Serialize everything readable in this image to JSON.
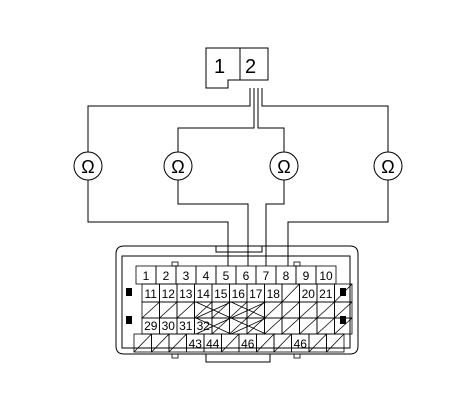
{
  "small_connector": {
    "pins": [
      "1",
      "2"
    ]
  },
  "ohmmeters": [
    {
      "symbol": "Ω"
    },
    {
      "symbol": "Ω"
    },
    {
      "symbol": "Ω"
    },
    {
      "symbol": "Ω"
    }
  ],
  "ecm_connector": {
    "row1": [
      "1",
      "2",
      "3",
      "4",
      "5",
      "6",
      "7",
      "8",
      "9",
      "10"
    ],
    "row2": [
      "11",
      "12",
      "13",
      "14",
      "15",
      "16",
      "17",
      "18",
      "",
      "20",
      "21",
      ""
    ],
    "row3": [
      "",
      "",
      "",
      "",
      "",
      "",
      "",
      "",
      "",
      "",
      "",
      ""
    ],
    "row4": [
      "29",
      "30",
      "31",
      "32",
      "",
      "",
      "",
      "",
      "",
      "",
      "",
      ""
    ],
    "row5": [
      "",
      "",
      "",
      "43",
      "44",
      "",
      "46",
      "",
      "",
      "46",
      "",
      ""
    ]
  }
}
